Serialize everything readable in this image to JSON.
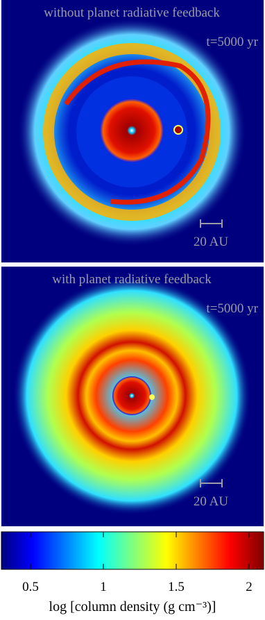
{
  "panels": [
    {
      "title": "without planet radiative feedback",
      "time": "t=5000 yr",
      "scale": "20 AU"
    },
    {
      "title": "with planet radiative feedback",
      "time": "t=5000 yr",
      "scale": "20 AU"
    }
  ],
  "colorbar": {
    "label": "log [column density (g cm⁻³)]",
    "lim": [
      0.3,
      2.1
    ],
    "ticks": [
      0.5,
      1,
      1.5,
      2
    ]
  }
}
